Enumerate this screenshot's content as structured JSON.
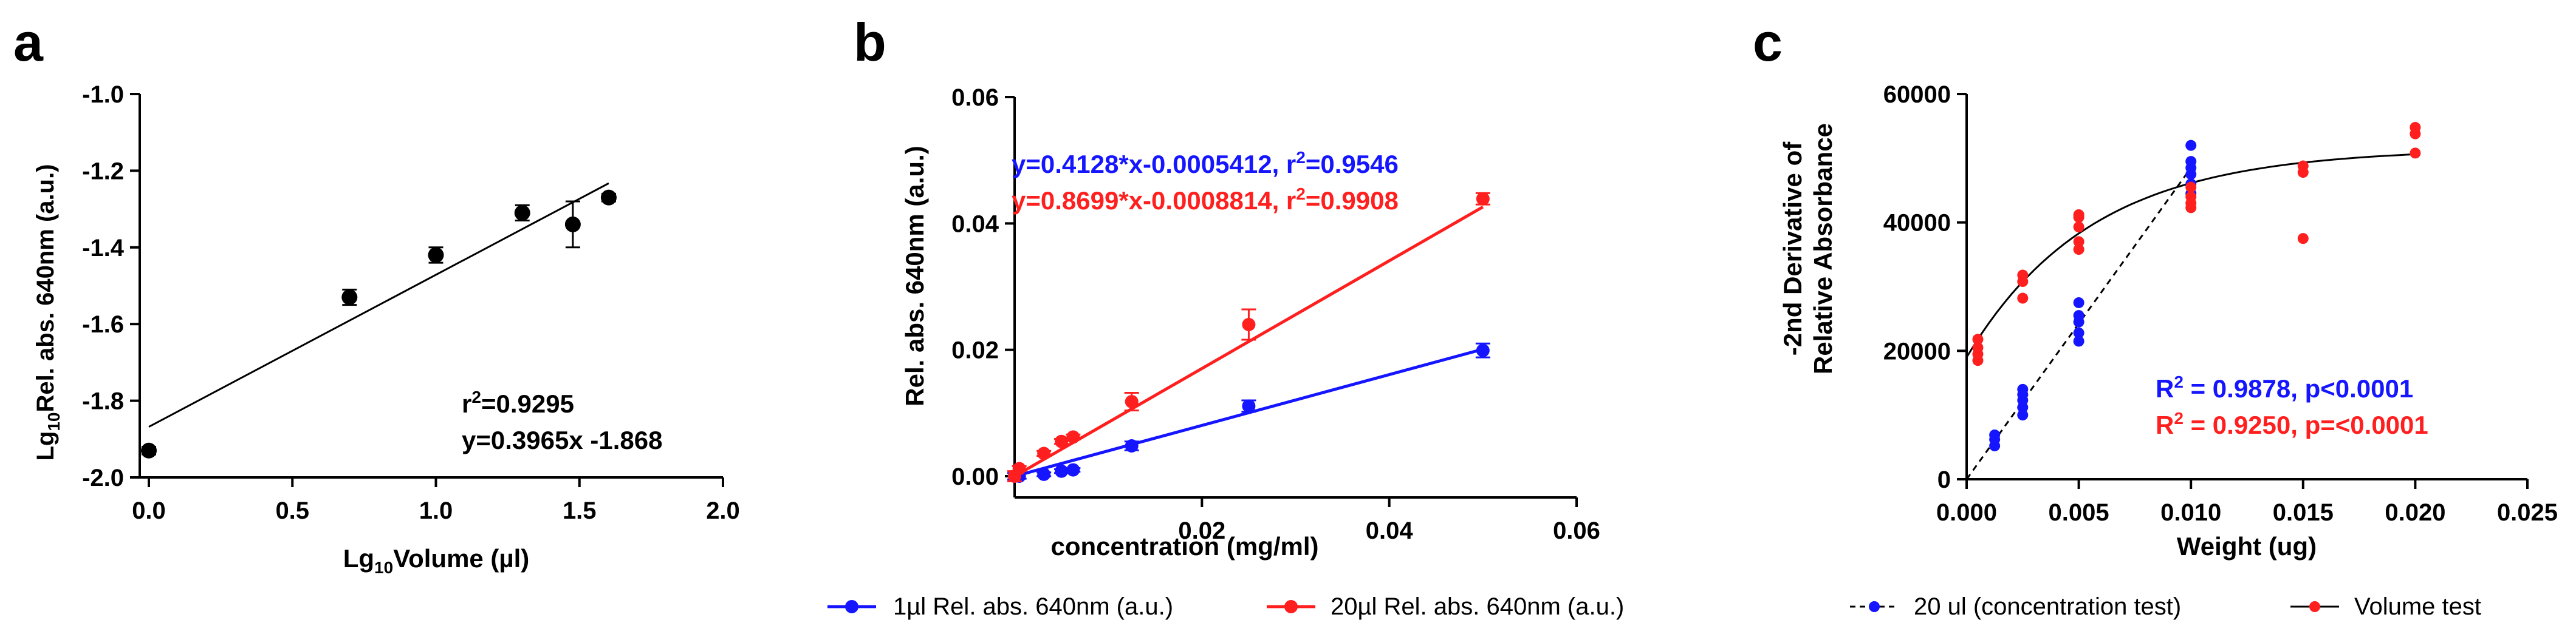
{
  "chart_data": [
    {
      "panel": "a",
      "type": "scatter",
      "xlabel": "Lg₁₀Volume (µl)",
      "ylabel": "Lg₁₀Rel. abs. 640nm (a.u.)",
      "xlim": [
        0.0,
        2.0
      ],
      "ylim": [
        -2.0,
        -1.0
      ],
      "xticks": [
        0.0,
        0.5,
        1.0,
        1.5,
        2.0
      ],
      "xtick_labels": [
        "0.0",
        "0.5",
        "1.0",
        "1.5",
        "2.0"
      ],
      "yticks": [
        -2.0,
        -1.8,
        -1.6,
        -1.4,
        -1.2,
        -1.0
      ],
      "ytick_labels": [
        "-2.0",
        "-1.8",
        "-1.6",
        "-1.4",
        "-1.2",
        "-1.0"
      ],
      "series": [
        {
          "name": "data",
          "color": "#000000",
          "x": [
            0.0,
            0.699,
            1.0,
            1.301,
            1.477,
            1.602
          ],
          "y": [
            -1.93,
            -1.53,
            -1.42,
            -1.31,
            -1.34,
            -1.27
          ],
          "err": [
            0.01,
            0.02,
            0.02,
            0.02,
            0.06,
            0.01
          ]
        }
      ],
      "fit": {
        "slope": 0.3965,
        "intercept": -1.868,
        "x_range": [
          0.0,
          1.602
        ],
        "color": "#000000"
      },
      "annotations": [
        "r²=0.9295",
        "y=0.3965x -1.868"
      ]
    },
    {
      "panel": "b",
      "type": "scatter",
      "xlabel": "concentration (mg/ml)",
      "ylabel": "Rel. abs. 640nm (a.u.)",
      "xlim": [
        0.0,
        0.06
      ],
      "ylim": [
        0.0,
        0.06
      ],
      "xticks": [
        0.02,
        0.04,
        0.06
      ],
      "xtick_labels": [
        "0.02",
        "0.04",
        "0.06"
      ],
      "yticks": [
        0.0,
        0.02,
        0.04,
        0.06
      ],
      "ytick_labels": [
        "0.00",
        "0.02",
        "0.04",
        "0.06"
      ],
      "series": [
        {
          "name": "1µl Rel. abs. 640nm (a.u.)",
          "color": "#1515ff",
          "x": [
            0.0,
            0.0005,
            0.003125,
            0.00625,
            0.005,
            0.0125,
            0.025,
            0.05
          ],
          "y": [
            0.0,
            0.0,
            0.0003,
            0.001,
            0.0008,
            0.0048,
            0.0111,
            0.0199
          ],
          "err": [
            0.0005,
            0.0004,
            0.0003,
            0.0003,
            0.0003,
            0.0007,
            0.0009,
            0.0011
          ],
          "fit": {
            "slope": 0.4128,
            "intercept": -0.0005412,
            "x_range": [
              0.0,
              0.05
            ]
          }
        },
        {
          "name": "20µl Rel. abs. 640nm (a.u.)",
          "color": "#ff1f1f",
          "x": [
            0.0,
            0.0005,
            0.003125,
            0.005,
            0.00625,
            0.0125,
            0.025,
            0.05
          ],
          "y": [
            0.0,
            0.0012,
            0.0036,
            0.0055,
            0.0062,
            0.0118,
            0.024,
            0.0439
          ],
          "err": [
            0.0008,
            0.0004,
            0.0004,
            0.0004,
            0.0004,
            0.0014,
            0.0024,
            0.0009
          ],
          "fit": {
            "slope": 0.8699,
            "intercept": -0.0008814,
            "x_range": [
              0.0,
              0.05
            ]
          }
        }
      ],
      "annotations": [
        {
          "text": "y=0.4128*x-0.0005412, r²=0.9546",
          "color": "#1515ff"
        },
        {
          "text": "y=0.8699*x-0.0008814, r²=0.9908",
          "color": "#ff1f1f"
        }
      ],
      "legend": "bottom"
    },
    {
      "panel": "c",
      "type": "scatter",
      "xlabel": "Weight (ug)",
      "ylabel": [
        "-2nd Derivative of",
        "Relative Absorbance"
      ],
      "xlim": [
        0.0,
        0.025
      ],
      "ylim": [
        0,
        60000
      ],
      "xticks": [
        0.0,
        0.005,
        0.01,
        0.015,
        0.02,
        0.025
      ],
      "xtick_labels": [
        "0.000",
        "0.005",
        "0.010",
        "0.015",
        "0.020",
        "0.025"
      ],
      "yticks": [
        0,
        20000,
        40000,
        60000
      ],
      "ytick_labels": [
        "0",
        "20000",
        "40000",
        "60000"
      ],
      "series": [
        {
          "name": "20 ul (concentration test)",
          "color": "#1515ff",
          "x": [
            0.00125,
            0.00125,
            0.00125,
            0.0025,
            0.0025,
            0.0025,
            0.0025,
            0.0025,
            0.005,
            0.005,
            0.005,
            0.005,
            0.005,
            0.01,
            0.01,
            0.01,
            0.01,
            0.01,
            0.01
          ],
          "y": [
            5200,
            6200,
            6900,
            10000,
            11200,
            12300,
            13200,
            14000,
            21500,
            22800,
            24500,
            25500,
            27500,
            44500,
            46000,
            47500,
            48500,
            49500,
            52000
          ],
          "fit_line": {
            "style": "dashed",
            "x": [
              0.0,
              0.01
            ],
            "y": [
              -500,
              48500
            ]
          }
        },
        {
          "name": "Volume test",
          "color": "#ff1f1f",
          "x": [
            0.0005,
            0.0005,
            0.0005,
            0.0005,
            0.0025,
            0.0025,
            0.0025,
            0.005,
            0.005,
            0.005,
            0.005,
            0.005,
            0.01,
            0.01,
            0.01,
            0.01,
            0.015,
            0.015,
            0.015,
            0.02,
            0.02,
            0.02
          ],
          "y": [
            18500,
            19500,
            20500,
            21800,
            28200,
            30800,
            31800,
            35800,
            37000,
            39300,
            40800,
            41200,
            42300,
            43000,
            44000,
            45500,
            37500,
            47800,
            48800,
            50800,
            53800,
            54800
          ],
          "fit_curve": {
            "plateau": 51500,
            "y0": 19000,
            "k": 180,
            "x_range": [
              0.0,
              0.02
            ]
          }
        }
      ],
      "annotations": [
        {
          "text": "R² = 0.9878, p<0.0001",
          "color": "#1515ff"
        },
        {
          "text": "R² = 0.9250, p=<0.0001",
          "color": "#ff1f1f"
        }
      ],
      "legend": "bottom"
    }
  ],
  "panels": {
    "a": {
      "letter": "a",
      "xlabel_pre": "Lg",
      "xlabel_sub": "10",
      "xlabel_post": "Volume (µl)",
      "ylabel_pre": "Lg",
      "ylabel_sub": "10",
      "ylabel_post": "Rel. abs. 640nm (a.u.)",
      "ann1_pre": "r",
      "ann1_sup": "2",
      "ann1_post": "=0.9295",
      "ann2": "y=0.3965x -1.868"
    },
    "b": {
      "letter": "b",
      "ann1_pre": "y=0.4128*x-0.0005412, r",
      "ann1_sup": "2",
      "ann1_post": "=0.9546",
      "ann2_pre": "y=0.8699*x-0.0008814, r",
      "ann2_sup": "2",
      "ann2_post": "=0.9908"
    },
    "c": {
      "letter": "c",
      "ann1_pre": "R",
      "ann1_sup": "2",
      "ann1_post": " = 0.9878, p<0.0001",
      "ann2_pre": "R",
      "ann2_sup": "2",
      "ann2_post": " = 0.9250, p=<0.0001"
    }
  }
}
